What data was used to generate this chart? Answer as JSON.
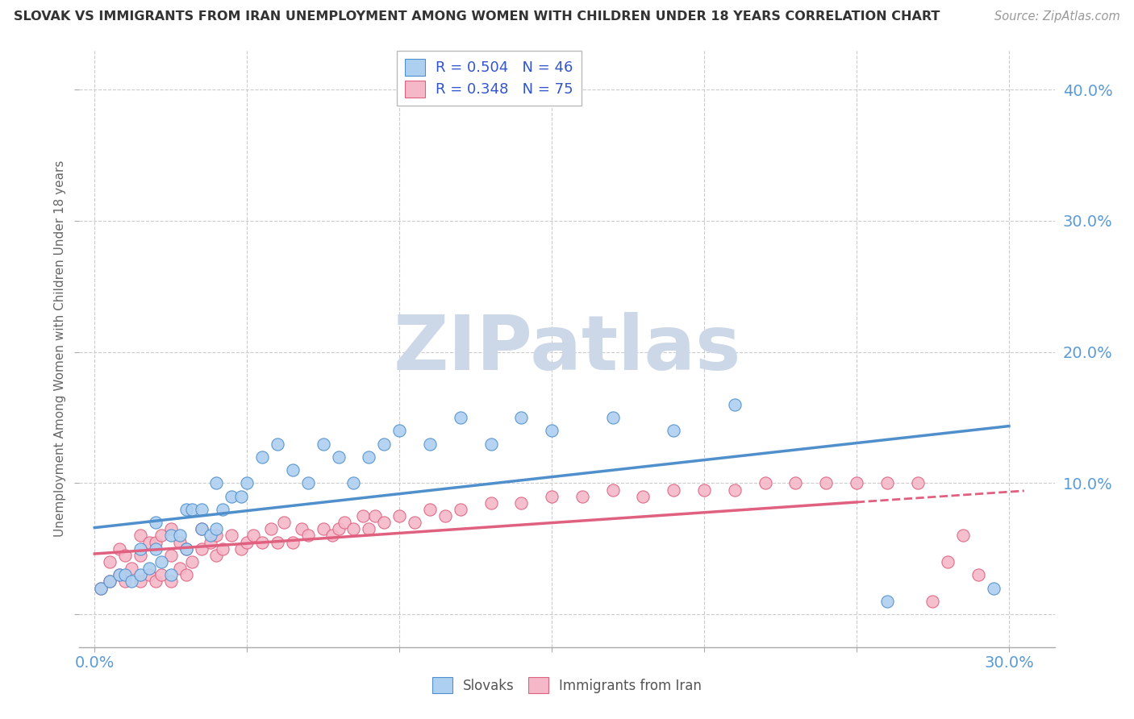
{
  "title": "SLOVAK VS IMMIGRANTS FROM IRAN UNEMPLOYMENT AMONG WOMEN WITH CHILDREN UNDER 18 YEARS CORRELATION CHART",
  "source": "Source: ZipAtlas.com",
  "ylabel": "Unemployment Among Women with Children Under 18 years",
  "x_ticks": [
    0.0,
    0.05,
    0.1,
    0.15,
    0.2,
    0.25,
    0.3
  ],
  "y_ticks": [
    0.0,
    0.1,
    0.2,
    0.3,
    0.4
  ],
  "xlim": [
    -0.005,
    0.315
  ],
  "ylim": [
    -0.025,
    0.43
  ],
  "slovak_R": 0.504,
  "slovak_N": 46,
  "iran_R": 0.348,
  "iran_N": 75,
  "slovak_color": "#aed0f0",
  "slovak_line_color": "#4f8fcc",
  "iran_color": "#f5b8c8",
  "iran_line_color": "#e06080",
  "background_color": "#ffffff",
  "watermark": "ZIPatlas",
  "watermark_color": "#ccd8e8",
  "grid_color": "#cccccc",
  "tick_color": "#5b9bd5",
  "title_color": "#333333",
  "source_color": "#999999",
  "ylabel_color": "#666666",
  "legend_text_color": "#333333",
  "legend_value_color": "#3355cc",
  "bottom_legend_color": "#555555",
  "slovak_x": [
    0.002,
    0.005,
    0.008,
    0.01,
    0.012,
    0.015,
    0.015,
    0.018,
    0.02,
    0.02,
    0.022,
    0.025,
    0.025,
    0.028,
    0.03,
    0.03,
    0.032,
    0.035,
    0.035,
    0.038,
    0.04,
    0.04,
    0.042,
    0.045,
    0.048,
    0.05,
    0.055,
    0.06,
    0.065,
    0.07,
    0.075,
    0.08,
    0.085,
    0.09,
    0.095,
    0.1,
    0.11,
    0.12,
    0.13,
    0.14,
    0.15,
    0.17,
    0.19,
    0.21,
    0.26,
    0.295
  ],
  "slovak_y": [
    0.02,
    0.025,
    0.03,
    0.03,
    0.025,
    0.03,
    0.05,
    0.035,
    0.05,
    0.07,
    0.04,
    0.03,
    0.06,
    0.06,
    0.05,
    0.08,
    0.08,
    0.065,
    0.08,
    0.06,
    0.065,
    0.1,
    0.08,
    0.09,
    0.09,
    0.1,
    0.12,
    0.13,
    0.11,
    0.1,
    0.13,
    0.12,
    0.1,
    0.12,
    0.13,
    0.14,
    0.13,
    0.15,
    0.13,
    0.15,
    0.14,
    0.15,
    0.14,
    0.16,
    0.01,
    0.02
  ],
  "iran_x": [
    0.002,
    0.005,
    0.005,
    0.008,
    0.008,
    0.01,
    0.01,
    0.012,
    0.015,
    0.015,
    0.015,
    0.018,
    0.018,
    0.02,
    0.02,
    0.022,
    0.022,
    0.025,
    0.025,
    0.025,
    0.028,
    0.028,
    0.03,
    0.03,
    0.032,
    0.035,
    0.035,
    0.038,
    0.04,
    0.04,
    0.042,
    0.045,
    0.048,
    0.05,
    0.052,
    0.055,
    0.058,
    0.06,
    0.062,
    0.065,
    0.068,
    0.07,
    0.075,
    0.078,
    0.08,
    0.082,
    0.085,
    0.088,
    0.09,
    0.092,
    0.095,
    0.1,
    0.105,
    0.11,
    0.115,
    0.12,
    0.13,
    0.14,
    0.15,
    0.16,
    0.17,
    0.18,
    0.19,
    0.2,
    0.21,
    0.22,
    0.23,
    0.24,
    0.25,
    0.26,
    0.27,
    0.275,
    0.28,
    0.285,
    0.29
  ],
  "iran_y": [
    0.02,
    0.025,
    0.04,
    0.03,
    0.05,
    0.025,
    0.045,
    0.035,
    0.025,
    0.045,
    0.06,
    0.03,
    0.055,
    0.025,
    0.055,
    0.03,
    0.06,
    0.025,
    0.045,
    0.065,
    0.035,
    0.055,
    0.03,
    0.05,
    0.04,
    0.05,
    0.065,
    0.055,
    0.045,
    0.06,
    0.05,
    0.06,
    0.05,
    0.055,
    0.06,
    0.055,
    0.065,
    0.055,
    0.07,
    0.055,
    0.065,
    0.06,
    0.065,
    0.06,
    0.065,
    0.07,
    0.065,
    0.075,
    0.065,
    0.075,
    0.07,
    0.075,
    0.07,
    0.08,
    0.075,
    0.08,
    0.085,
    0.085,
    0.09,
    0.09,
    0.095,
    0.09,
    0.095,
    0.095,
    0.095,
    0.1,
    0.1,
    0.1,
    0.1,
    0.1,
    0.1,
    0.01,
    0.04,
    0.06,
    0.03
  ]
}
